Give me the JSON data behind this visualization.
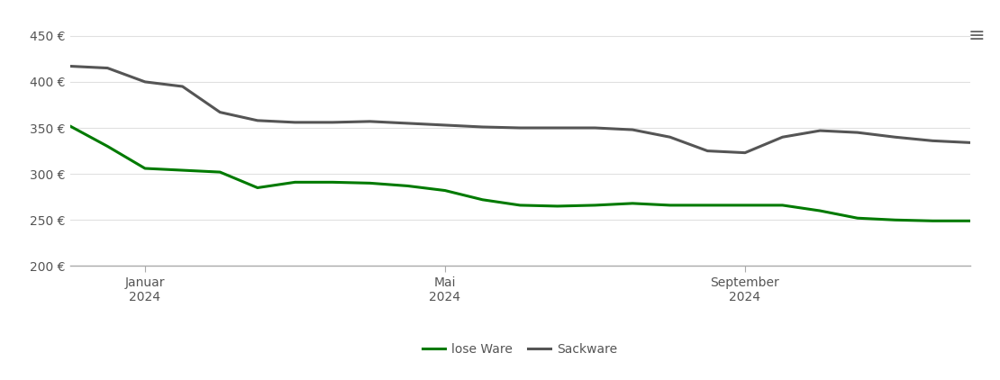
{
  "lose_ware_x": [
    0,
    0.5,
    1,
    1.5,
    2,
    2.5,
    3,
    3.5,
    4,
    4.5,
    5,
    5.5,
    6,
    6.5,
    7,
    7.5,
    8,
    8.5,
    9,
    9.5,
    10,
    10.5,
    11,
    11.5,
    12
  ],
  "lose_ware_y": [
    352,
    330,
    306,
    304,
    302,
    285,
    291,
    291,
    290,
    287,
    282,
    272,
    266,
    265,
    266,
    268,
    266,
    266,
    266,
    266,
    260,
    252,
    250,
    249,
    249
  ],
  "sackware_x": [
    0,
    0.5,
    1,
    1.5,
    2,
    2.5,
    3,
    3.5,
    4,
    4.5,
    5,
    5.5,
    6,
    6.5,
    7,
    7.5,
    8,
    8.5,
    9,
    9.5,
    10,
    10.5,
    11,
    11.5,
    12
  ],
  "sackware_y": [
    417,
    415,
    400,
    395,
    367,
    358,
    356,
    356,
    357,
    355,
    353,
    351,
    350,
    350,
    350,
    348,
    340,
    325,
    323,
    340,
    347,
    345,
    340,
    336,
    334
  ],
  "lose_ware_color": "#007a00",
  "sackware_color": "#555555",
  "background_color": "#ffffff",
  "grid_color": "#e0e0e0",
  "ylim": [
    200,
    460
  ],
  "yticks": [
    200,
    250,
    300,
    350,
    400,
    450
  ],
  "xlabel_ticks": [
    "Januar\n2024",
    "Mai\n2024",
    "September\n2024"
  ],
  "xlabel_tick_positions": [
    1,
    5,
    9
  ],
  "legend_labels": [
    "lose Ware",
    "Sackware"
  ],
  "line_width": 2.2,
  "axis_color": "#aaaaaa",
  "font_color": "#555555",
  "menu_icon_color": "#666666",
  "font_size_ticks": 10,
  "font_size_legend": 10
}
